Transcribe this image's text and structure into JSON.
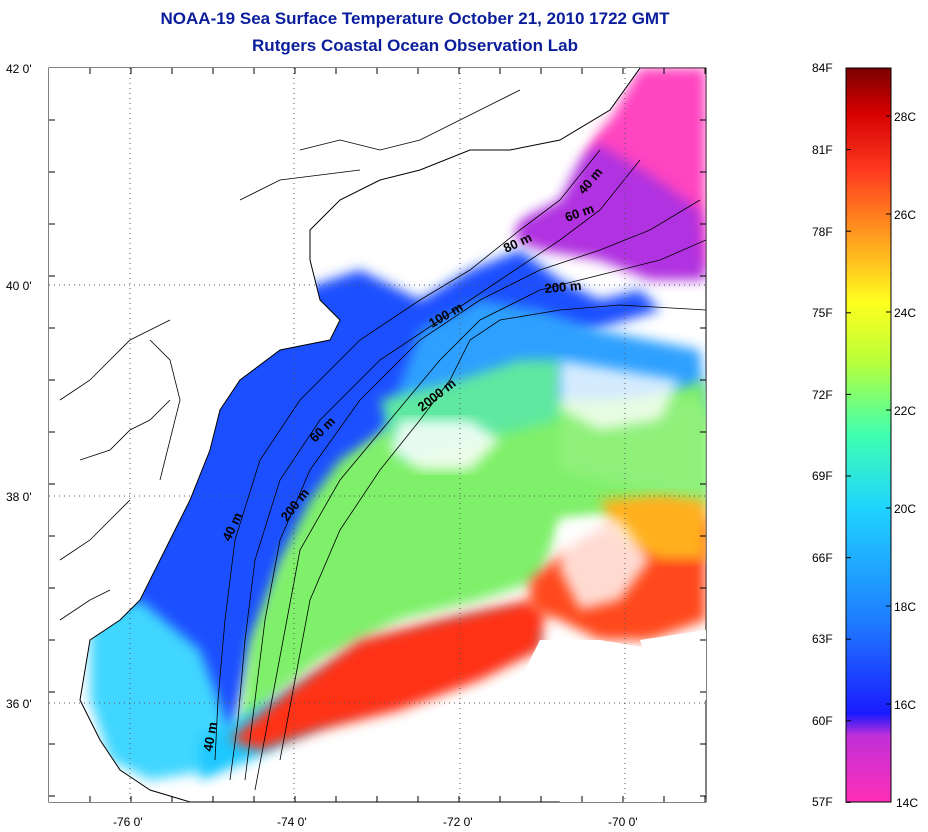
{
  "header": {
    "title": "NOAA-19 Sea Surface Temperature October 21, 2010 1722 GMT",
    "subtitle": "Rutgers Coastal Ocean Observation Lab"
  },
  "axes": {
    "lat_labels": [
      "42 0'",
      "40 0'",
      "38 0'",
      "36 0'"
    ],
    "lon_labels": [
      "-76 0'",
      "-74 0'",
      "-72 0'",
      "-70 0'"
    ]
  },
  "depth_contours": [
    "40 m",
    "60 m",
    "80 m",
    "200 m",
    "100 m",
    "2000 m",
    "60 m",
    "200 m",
    "40 m",
    "40 m"
  ],
  "colorbar": {
    "fahrenheit": [
      "84F",
      "81F",
      "78F",
      "75F",
      "72F",
      "69F",
      "66F",
      "63F",
      "60F",
      "57F"
    ],
    "celsius": [
      "28C",
      "26C",
      "24C",
      "22C",
      "20C",
      "18C",
      "16C",
      "14C"
    ],
    "colors": [
      "#ff2fb7",
      "#9a2fe0",
      "#1a1aff",
      "#1f7fff",
      "#1fd4ff",
      "#3fffb0",
      "#b8ff3a",
      "#ffff1f",
      "#ffa81f",
      "#ff3a1f",
      "#d40000",
      "#7a0000"
    ]
  }
}
